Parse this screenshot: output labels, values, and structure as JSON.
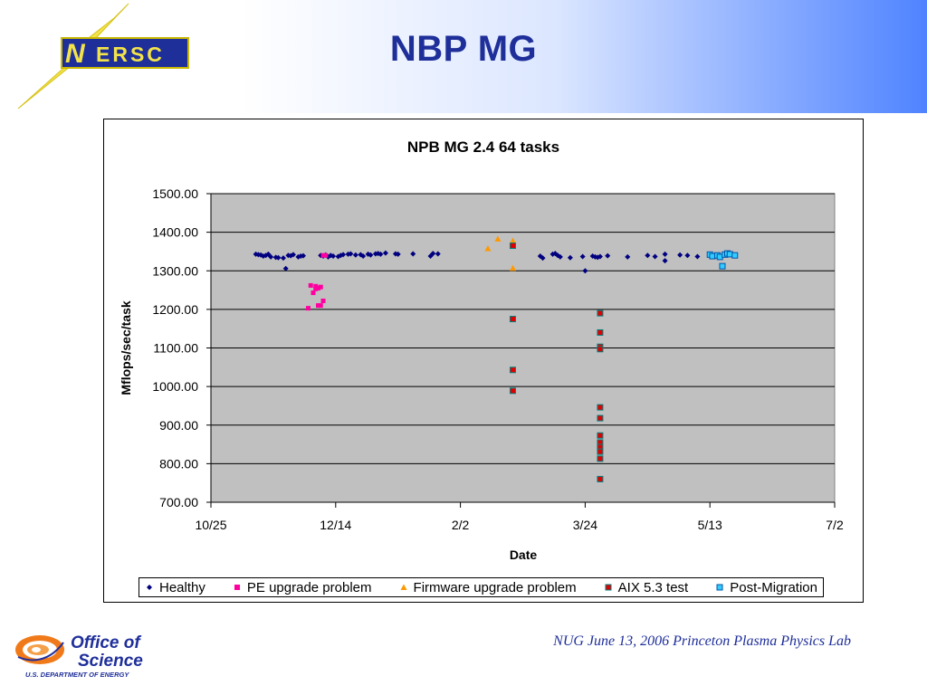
{
  "header": {
    "title": "NBP MG",
    "logo_text": "ERSC"
  },
  "footer": {
    "text": "NUG June 13, 2006 Princeton Plasma Physics Lab",
    "doe_line1": "Office of",
    "doe_line2": "Science",
    "doe_line3": "U.S. DEPARTMENT OF ENERGY"
  },
  "colors": {
    "title": "#1f2f9a",
    "plot_bg": "#c0c0c0",
    "healthy": "#000080",
    "pe": "#ff00a0",
    "firmware": "#ff9900",
    "aix": "#e00000",
    "aix_edge": "#008080",
    "post": "#33ccff",
    "post_edge": "#0055aa"
  },
  "chart_data": {
    "type": "scatter",
    "title": "NPB MG 2.4 64 tasks",
    "xlabel": "Date",
    "ylabel": "Mflops/sec/task",
    "x_ticks": [
      "10/25",
      "12/14",
      "2/2",
      "3/24",
      "5/13",
      "7/2"
    ],
    "x_tick_dates": [
      "2005-10-25",
      "2005-12-14",
      "2006-02-02",
      "2006-03-24",
      "2006-05-13",
      "2006-07-02"
    ],
    "y_ticks": [
      "700.00",
      "800.00",
      "900.00",
      "1000.00",
      "1100.00",
      "1200.00",
      "1300.00",
      "1400.00",
      "1500.00"
    ],
    "ylim": [
      700,
      1500
    ],
    "xlim": [
      "2005-10-25",
      "2006-07-02"
    ],
    "grid": "horizontal",
    "legend_position": "bottom",
    "series": [
      {
        "name": "Healthy",
        "marker": "diamond",
        "color": "#000080",
        "points": [
          [
            "2005-11-12",
            1343
          ],
          [
            "2005-11-13",
            1342
          ],
          [
            "2005-11-14",
            1341
          ],
          [
            "2005-11-15",
            1338
          ],
          [
            "2005-11-16",
            1340
          ],
          [
            "2005-11-17",
            1343
          ],
          [
            "2005-11-18",
            1336
          ],
          [
            "2005-11-20",
            1335
          ],
          [
            "2005-11-21",
            1334
          ],
          [
            "2005-11-23",
            1333
          ],
          [
            "2005-11-24",
            1306
          ],
          [
            "2005-11-25",
            1340
          ],
          [
            "2005-11-26",
            1339
          ],
          [
            "2005-11-27",
            1342
          ],
          [
            "2005-11-29",
            1336
          ],
          [
            "2005-11-30",
            1338
          ],
          [
            "2005-12-01",
            1339
          ],
          [
            "2005-12-08",
            1340
          ],
          [
            "2005-12-09",
            1338
          ],
          [
            "2005-12-10",
            1341
          ],
          [
            "2005-12-11",
            1336
          ],
          [
            "2005-12-12",
            1340
          ],
          [
            "2005-12-13",
            1338
          ],
          [
            "2005-12-15",
            1337
          ],
          [
            "2005-12-16",
            1340
          ],
          [
            "2005-12-17",
            1342
          ],
          [
            "2005-12-19",
            1343
          ],
          [
            "2005-12-20",
            1344
          ],
          [
            "2005-12-22",
            1341
          ],
          [
            "2005-12-24",
            1342
          ],
          [
            "2005-12-25",
            1338
          ],
          [
            "2005-12-27",
            1343
          ],
          [
            "2005-12-28",
            1341
          ],
          [
            "2005-12-30",
            1344
          ],
          [
            "2005-12-31",
            1345
          ],
          [
            "2006-01-01",
            1343
          ],
          [
            "2006-01-03",
            1346
          ],
          [
            "2006-01-07",
            1344
          ],
          [
            "2006-01-08",
            1343
          ],
          [
            "2006-01-14",
            1344
          ],
          [
            "2006-01-21",
            1338
          ],
          [
            "2006-01-22",
            1345
          ],
          [
            "2006-01-24",
            1344
          ],
          [
            "2006-03-06",
            1338
          ],
          [
            "2006-03-07",
            1333
          ],
          [
            "2006-03-11",
            1343
          ],
          [
            "2006-03-12",
            1345
          ],
          [
            "2006-03-13",
            1340
          ],
          [
            "2006-03-14",
            1336
          ],
          [
            "2006-03-18",
            1334
          ],
          [
            "2006-03-23",
            1337
          ],
          [
            "2006-03-24",
            1300
          ],
          [
            "2006-03-27",
            1338
          ],
          [
            "2006-03-28",
            1336
          ],
          [
            "2006-03-29",
            1335
          ],
          [
            "2006-03-30",
            1337
          ],
          [
            "2006-04-02",
            1339
          ],
          [
            "2006-04-10",
            1336
          ],
          [
            "2006-04-18",
            1340
          ],
          [
            "2006-04-21",
            1337
          ],
          [
            "2006-04-25",
            1343
          ],
          [
            "2006-04-25",
            1326
          ],
          [
            "2006-05-01",
            1341
          ],
          [
            "2006-05-04",
            1340
          ],
          [
            "2006-05-08",
            1337
          ]
        ]
      },
      {
        "name": "PE upgrade problem",
        "marker": "square",
        "color": "#ff00a0",
        "points": [
          [
            "2005-12-03",
            1203
          ],
          [
            "2005-12-04",
            1262
          ],
          [
            "2005-12-05",
            1243
          ],
          [
            "2005-12-06",
            1260
          ],
          [
            "2005-12-06",
            1253
          ],
          [
            "2005-12-07",
            1255
          ],
          [
            "2005-12-07",
            1210
          ],
          [
            "2005-12-08",
            1258
          ],
          [
            "2005-12-08",
            1210
          ],
          [
            "2005-12-09",
            1340
          ],
          [
            "2005-12-09",
            1222
          ],
          [
            "2005-12-10",
            1340
          ]
        ]
      },
      {
        "name": "Firmware upgrade problem",
        "marker": "triangle",
        "color": "#ff9900",
        "points": [
          [
            "2006-02-13",
            1358
          ],
          [
            "2006-02-17",
            1383
          ],
          [
            "2006-02-23",
            1378
          ],
          [
            "2006-02-23",
            1307
          ]
        ]
      },
      {
        "name": "AIX 5.3 test",
        "marker": "square",
        "color": "#e00000",
        "points": [
          [
            "2006-02-23",
            1365
          ],
          [
            "2006-02-23",
            1175
          ],
          [
            "2006-02-23",
            1043
          ],
          [
            "2006-02-23",
            989
          ],
          [
            "2006-03-30",
            1190
          ],
          [
            "2006-03-30",
            1140
          ],
          [
            "2006-03-30",
            1103
          ],
          [
            "2006-03-30",
            1097
          ],
          [
            "2006-03-30",
            946
          ],
          [
            "2006-03-30",
            918
          ],
          [
            "2006-03-30",
            873
          ],
          [
            "2006-03-30",
            855
          ],
          [
            "2006-03-30",
            843
          ],
          [
            "2006-03-30",
            831
          ],
          [
            "2006-03-30",
            813
          ],
          [
            "2006-03-30",
            760
          ]
        ]
      },
      {
        "name": "Post-Migration",
        "marker": "square",
        "color": "#33ccff",
        "points": [
          [
            "2006-05-13",
            1342
          ],
          [
            "2006-05-14",
            1338
          ],
          [
            "2006-05-16",
            1340
          ],
          [
            "2006-05-17",
            1336
          ],
          [
            "2006-05-18",
            1312
          ],
          [
            "2006-05-19",
            1342
          ],
          [
            "2006-05-20",
            1345
          ],
          [
            "2006-05-21",
            1343
          ],
          [
            "2006-05-23",
            1340
          ]
        ]
      }
    ]
  }
}
